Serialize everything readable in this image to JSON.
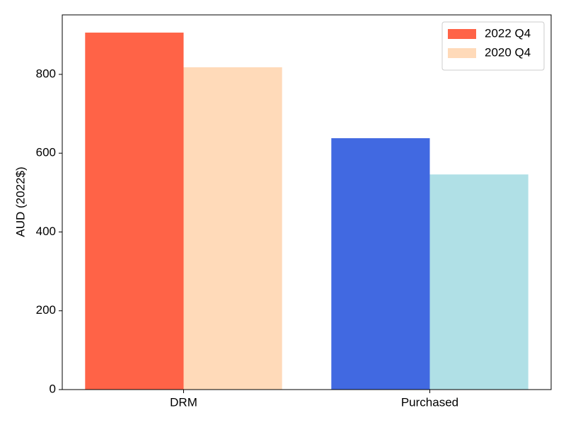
{
  "chart_data": {
    "type": "bar",
    "y_label": "AUD (2022$)",
    "categories": [
      "DRM",
      "Purchased"
    ],
    "series": [
      {
        "name": "2022 Q4",
        "colors": [
          "#ff6347",
          "#4169e1"
        ],
        "values": [
          906,
          638
        ]
      },
      {
        "name": "2020 Q4",
        "colors": [
          "#ffdab9",
          "#b0e0e6"
        ],
        "values": [
          818,
          546
        ]
      }
    ],
    "ylim": [
      0,
      951
    ],
    "yticks": [
      0,
      200,
      400,
      600,
      800
    ],
    "legend": "upper right"
  }
}
